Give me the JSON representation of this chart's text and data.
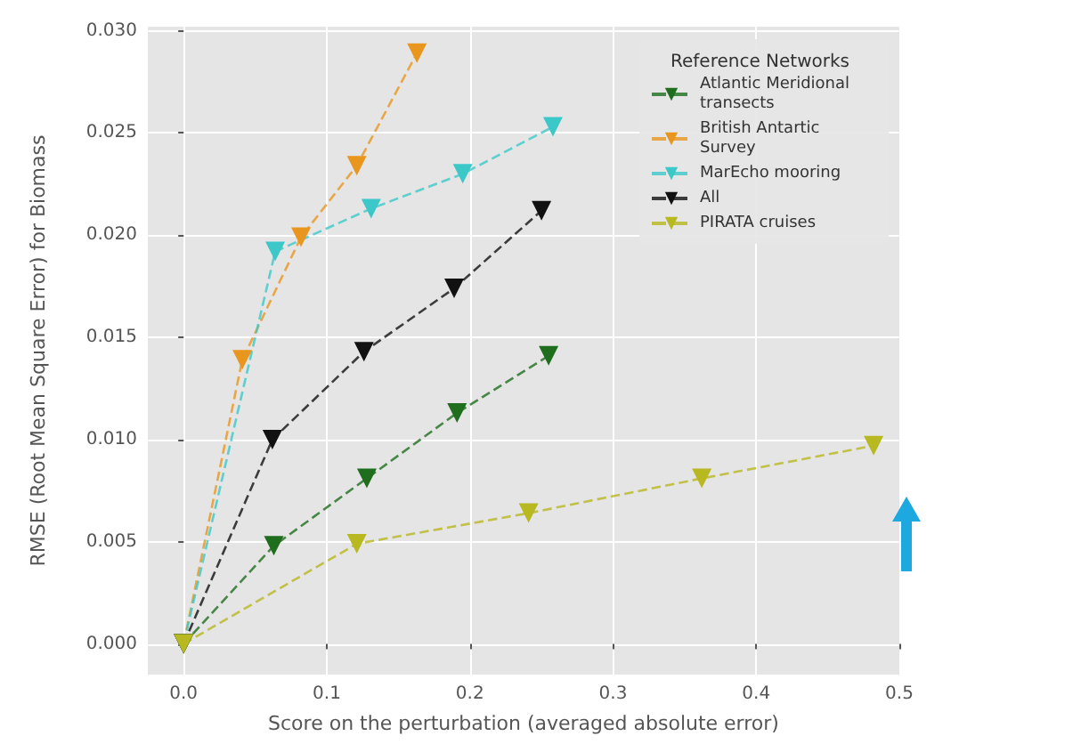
{
  "chart_data": {
    "type": "line",
    "xlabel": "Score on the perturbation (averaged absolute error)",
    "ylabel": "RMSE (Root Mean Square Error) for Biomass",
    "legend_title": "Reference Networks",
    "legend": "top right",
    "grid": true,
    "marker": "triangle",
    "line_style": "dashed",
    "xlim": [
      -0.025,
      0.5
    ],
    "xticks": [
      {
        "value": 0,
        "label": "0.0"
      },
      {
        "value": 0.1,
        "label": "0.1"
      },
      {
        "value": 0.2,
        "label": "0.2"
      },
      {
        "value": 0.3,
        "label": "0.3"
      },
      {
        "value": 0.4,
        "label": "0.4"
      },
      {
        "value": 0.5,
        "label": "0.5"
      }
    ],
    "ylim": [
      -0.0015,
      0.0302
    ],
    "yticks": [
      {
        "value": 0,
        "label": "0.000"
      },
      {
        "value": 0.005,
        "label": "0.005"
      },
      {
        "value": 0.01,
        "label": "0.010"
      },
      {
        "value": 0.015,
        "label": "0.015"
      },
      {
        "value": 0.02,
        "label": "0.020"
      },
      {
        "value": 0.025,
        "label": "0.025"
      },
      {
        "value": 0.03,
        "label": "0.030"
      }
    ],
    "series": [
      {
        "name": "Atlantic Meridional transects",
        "color": "#1e6e1e",
        "x": [
          0,
          0.063,
          0.128,
          0.191,
          0.255
        ],
        "values": [
          0,
          0.0048,
          0.0081,
          0.0113,
          0.0141
        ]
      },
      {
        "name": "British Antartic Survey",
        "color": "#e8961e",
        "x": [
          0,
          0.041,
          0.082,
          0.121,
          0.163
        ],
        "values": [
          0,
          0.0139,
          0.0199,
          0.0234,
          0.0289
        ]
      },
      {
        "name": "MarEcho mooring",
        "color": "#3cc8c8",
        "x": [
          0,
          0.064,
          0.131,
          0.195,
          0.258
        ],
        "values": [
          0,
          0.0192,
          0.0213,
          0.023,
          0.0253
        ]
      },
      {
        "name": "All",
        "color": "#111111",
        "x": [
          0,
          0.062,
          0.126,
          0.189,
          0.25
        ],
        "values": [
          0,
          0.01,
          0.0143,
          0.0174,
          0.0212
        ]
      },
      {
        "name": "PIRATA cruises",
        "color": "#b8b820",
        "x": [
          0,
          0.121,
          0.241,
          0.362,
          0.482
        ],
        "values": [
          0,
          0.0049,
          0.0064,
          0.0081,
          0.0097
        ]
      }
    ]
  }
}
